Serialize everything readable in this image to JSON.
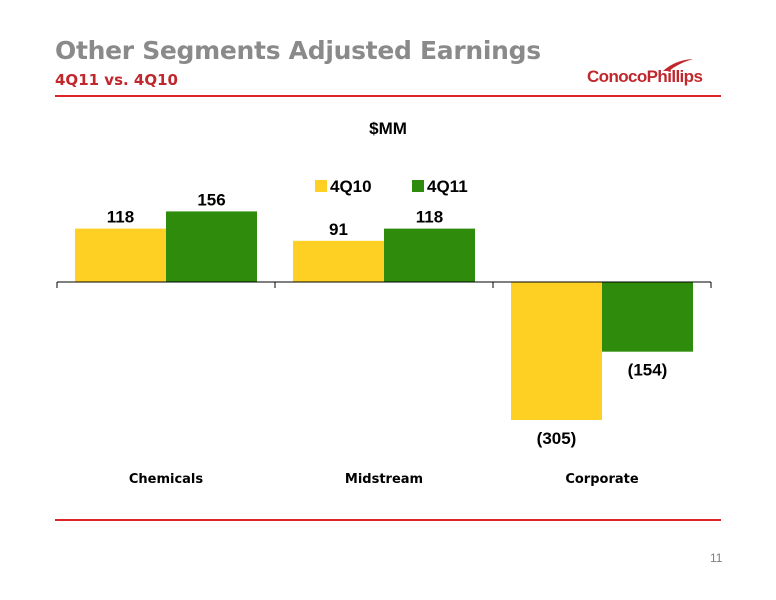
{
  "slide": {
    "title": "Other Segments Adjusted Earnings",
    "subtitle": "4Q11 vs. 4Q10",
    "logo_text": "ConocoPhillips",
    "page_number": "11"
  },
  "colors": {
    "series_4q10": "#fdd023",
    "series_4q11": "#2e8b0c",
    "accent_red": "#d9262c",
    "title_gray": "#8a8a8a"
  },
  "chart_data": {
    "type": "bar",
    "unit_label": "$MM",
    "categories": [
      "Chemicals",
      "Midstream",
      "Corporate"
    ],
    "series": [
      {
        "name": "4Q10",
        "values": [
          118,
          91,
          -305
        ],
        "labels": [
          "118",
          "91",
          "(305)"
        ]
      },
      {
        "name": "4Q11",
        "values": [
          156,
          118,
          -154
        ],
        "labels": [
          "156",
          "118",
          "(154)"
        ]
      }
    ],
    "legend_position": "top-center",
    "grid": false
  }
}
